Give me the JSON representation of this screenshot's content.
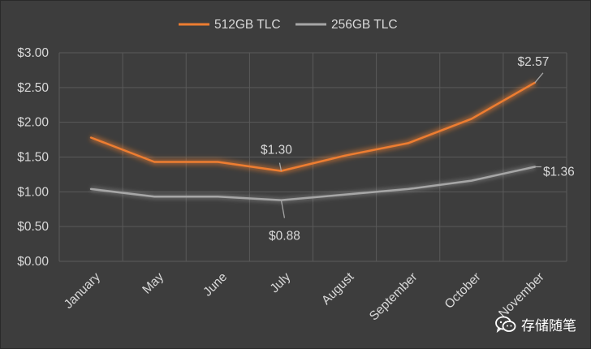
{
  "chart_data": {
    "type": "line",
    "categories": [
      "January",
      "May",
      "June",
      "July",
      "August",
      "September",
      "October",
      "November"
    ],
    "series": [
      {
        "name": "512GB TLC",
        "values": [
          1.78,
          1.43,
          1.43,
          1.3,
          1.52,
          1.7,
          2.05,
          2.57
        ],
        "color": "#ed7d31"
      },
      {
        "name": "256GB TLC",
        "values": [
          1.04,
          0.93,
          0.93,
          0.88,
          0.96,
          1.04,
          1.16,
          1.36
        ],
        "color": "#a6a6a6"
      }
    ],
    "ylim": [
      0,
      3
    ],
    "yticks": [
      "$0.00",
      "$0.50",
      "$1.00",
      "$1.50",
      "$2.00",
      "$2.50",
      "$3.00"
    ],
    "annotations": [
      {
        "series": 0,
        "index": 3,
        "text": "$1.30"
      },
      {
        "series": 0,
        "index": 7,
        "text": "$2.57"
      },
      {
        "series": 1,
        "index": 3,
        "text": "$0.88"
      },
      {
        "series": 1,
        "index": 7,
        "text": "$1.36"
      }
    ],
    "grid": true,
    "legend_position": "top"
  },
  "watermark": {
    "text": "存储随笔",
    "icon": "wechat-icon"
  }
}
